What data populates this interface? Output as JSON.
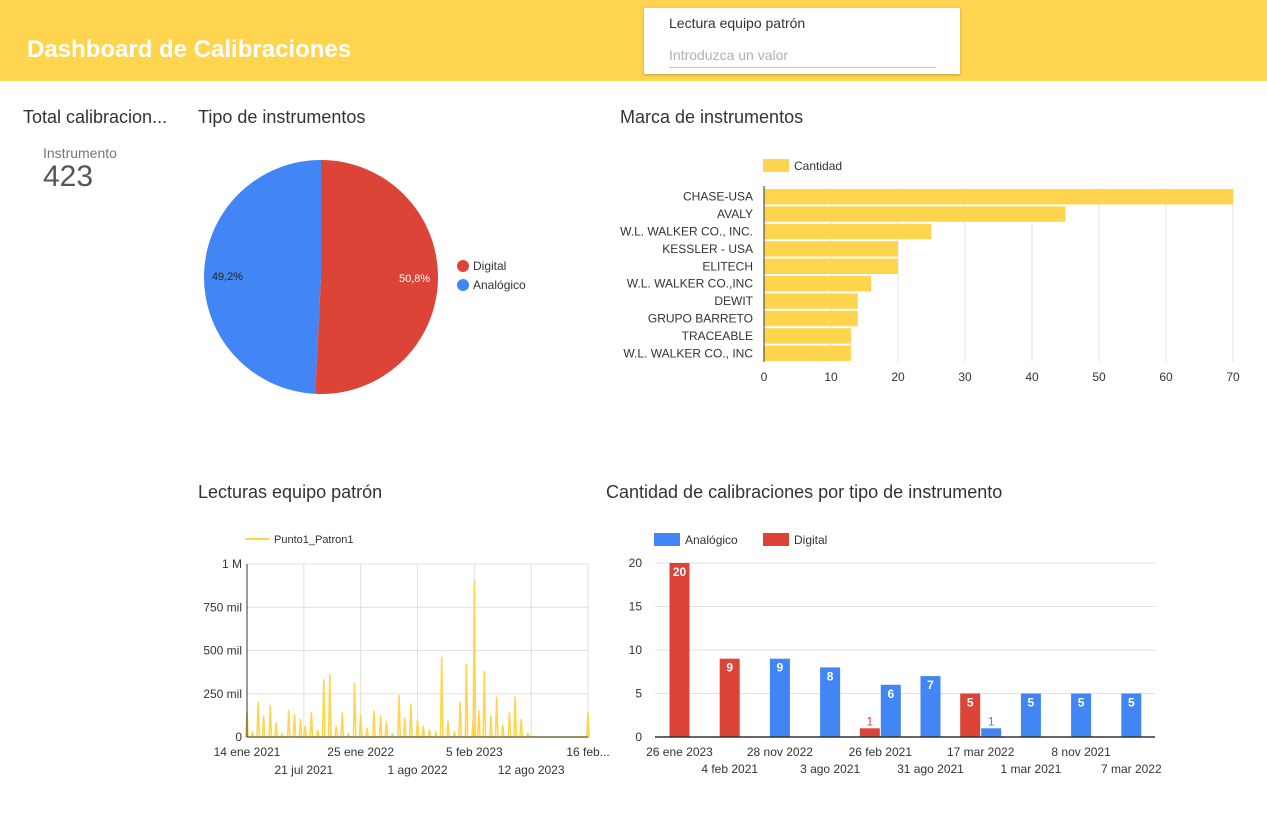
{
  "header": {
    "title": "Dashboard de Calibraciones",
    "filter": {
      "label": "Lectura equipo patrón",
      "placeholder": "Introduzca un valor",
      "value": ""
    },
    "background_color": "#ffd54f"
  },
  "scorecard": {
    "title": "Total calibracion...",
    "label": "Instrumento",
    "value": "423"
  },
  "pie": {
    "title": "Tipo de instrumentos",
    "chart_data": {
      "type": "pie",
      "slices": [
        {
          "name": "Digital",
          "value": 50.8,
          "label": "50,8%",
          "color": "#db4437"
        },
        {
          "name": "Analógico",
          "value": 49.2,
          "label": "49,2%",
          "color": "#4285f4"
        }
      ]
    }
  },
  "brands": {
    "title": "Marca de instrumentos",
    "chart_data": {
      "type": "bar",
      "orientation": "horizontal",
      "legend": "Cantidad",
      "color": "#ffd54f",
      "categories": [
        "CHASE-USA",
        "AVALY",
        "W.L. WALKER CO., INC.",
        "KESSLER - USA",
        "ELITECH",
        "W.L. WALKER CO.,INC",
        "DEWIT",
        "GRUPO BARRETO",
        "TRACEABLE",
        "W.L. WALKER CO., INC"
      ],
      "values": [
        70,
        45,
        25,
        20,
        20,
        16,
        14,
        14,
        13,
        13
      ],
      "xlim": [
        0,
        70
      ],
      "xticks": [
        "0",
        "10",
        "20",
        "30",
        "40",
        "50",
        "60",
        "70"
      ],
      "grid": true
    }
  },
  "readings": {
    "title": "Lecturas equipo patrón",
    "chart_data": {
      "type": "line",
      "series_name": "Punto1_Patron1",
      "color": "#ffd54f",
      "ylim": [
        0,
        1000000
      ],
      "yticks": [
        "0",
        "250 mil",
        "500 mil",
        "750 mil",
        "1 M"
      ],
      "xticks_top": [
        "14 ene 2021",
        "25 ene 2022",
        "5 feb 2023",
        "16 feb..."
      ],
      "xticks_bottom": [
        "21 jul 2021",
        "1 ago 2022",
        "12 ago 2023"
      ],
      "x": [
        "2021-01-14",
        "2021-02-01",
        "2021-02-20",
        "2021-03-10",
        "2021-04-01",
        "2021-04-20",
        "2021-05-10",
        "2021-06-01",
        "2021-06-20",
        "2021-07-10",
        "2021-07-25",
        "2021-08-15",
        "2021-09-05",
        "2021-09-25",
        "2021-10-15",
        "2021-11-05",
        "2021-11-25",
        "2021-12-15",
        "2022-01-05",
        "2022-01-25",
        "2022-02-15",
        "2022-03-10",
        "2022-04-01",
        "2022-04-20",
        "2022-05-10",
        "2022-06-01",
        "2022-06-20",
        "2022-07-10",
        "2022-08-01",
        "2022-08-20",
        "2022-09-10",
        "2022-10-01",
        "2022-10-20",
        "2022-11-10",
        "2022-12-01",
        "2022-12-20",
        "2023-01-10",
        "2023-02-01",
        "2023-02-05",
        "2023-02-20",
        "2023-03-10",
        "2023-04-01",
        "2023-04-20",
        "2023-05-10",
        "2023-06-01",
        "2023-06-20",
        "2023-07-10",
        "2023-08-01",
        "2023-12-01",
        "2024-02-16"
      ],
      "values": [
        140000,
        30000,
        200000,
        120000,
        180000,
        80000,
        20000,
        150000,
        130000,
        100000,
        60000,
        140000,
        40000,
        330000,
        360000,
        60000,
        140000,
        20000,
        310000,
        130000,
        50000,
        150000,
        120000,
        90000,
        20000,
        240000,
        110000,
        190000,
        100000,
        60000,
        40000,
        30000,
        460000,
        90000,
        30000,
        200000,
        420000,
        100000,
        900000,
        150000,
        380000,
        120000,
        230000,
        70000,
        140000,
        230000,
        100000,
        20000,
        0,
        140000
      ]
    }
  },
  "types": {
    "title": "Cantidad de calibraciones por tipo de instrumento",
    "chart_data": {
      "type": "bar",
      "categories": [
        "26 ene 2023",
        "4 feb 2021",
        "28 nov 2022",
        "3 ago 2021",
        "26 feb 2021",
        "31 ago 2021",
        "17 mar 2022",
        "1 mar 2021",
        "8 nov 2021",
        "7 mar 2022"
      ],
      "series": [
        {
          "name": "Analógico",
          "color": "#4285f4",
          "values": [
            null,
            null,
            9,
            8,
            6,
            7,
            1,
            5,
            5,
            5
          ]
        },
        {
          "name": "Digital",
          "color": "#db4437",
          "values": [
            20,
            9,
            null,
            null,
            1,
            null,
            5,
            null,
            null,
            null
          ]
        }
      ],
      "ylim": [
        0,
        20
      ],
      "yticks": [
        "0",
        "5",
        "10",
        "15",
        "20"
      ],
      "grid": true
    }
  }
}
